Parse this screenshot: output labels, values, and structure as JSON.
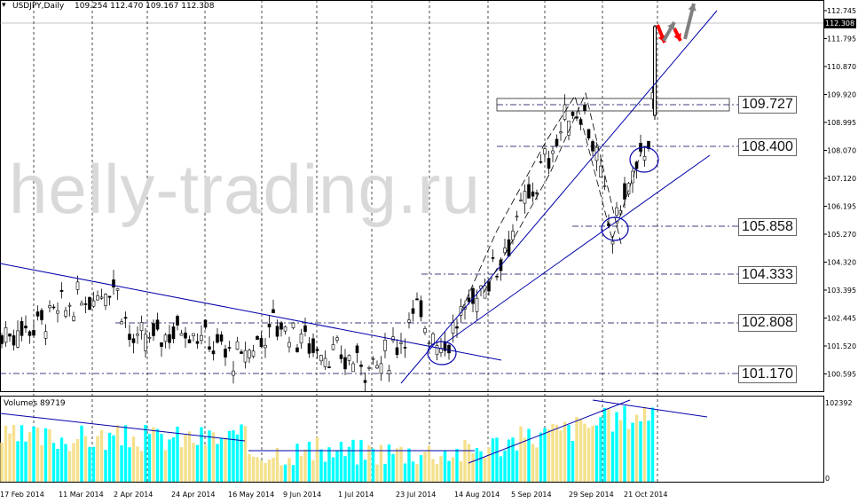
{
  "header": {
    "symbol": "USDJPY,Daily",
    "ohlc": "109.254 112.470 109.167 112.308"
  },
  "watermark": "helly-trading.ru",
  "price_axis": [
    "112.745",
    "111.795",
    "110.870",
    "109.920",
    "108.995",
    "108.070",
    "107.120",
    "106.195",
    "105.270",
    "104.320",
    "103.395",
    "102.445",
    "101.520",
    "100.595"
  ],
  "current_price": "112.308",
  "levels": [
    "109.727",
    "108.400",
    "105.858",
    "104.333",
    "102.808",
    "101.170"
  ],
  "volume_panel": {
    "title": "Volumes 89719",
    "max_label": "102392",
    "zero_label": "0"
  },
  "dates": [
    "17 Feb 2014",
    "11 Mar 2014",
    "2 Apr 2014",
    "24 Apr 2014",
    "16 May 2014",
    "9 Jun 2014",
    "1 Jul 2014",
    "23 Jul 2014",
    "14 Aug 2014",
    "5 Sep 2014",
    "29 Sep 2014",
    "21 Oct 2014"
  ],
  "colors": {
    "up_volume": "#00ffff",
    "down_volume": "#f5e08c",
    "trendline": "#0000aa",
    "arrow_down": "#ff0000",
    "arrow_up": "#808080"
  }
}
